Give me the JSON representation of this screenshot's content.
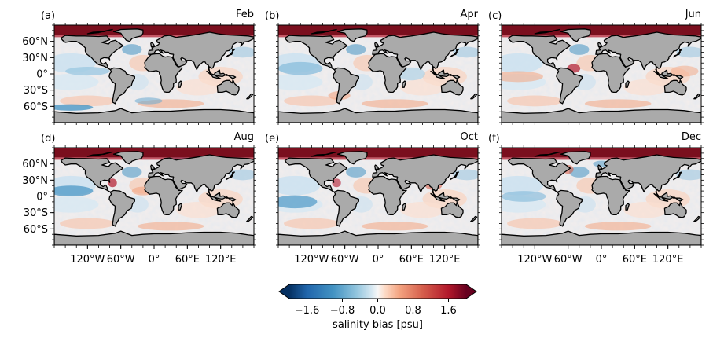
{
  "panels": [
    {
      "id": "a",
      "label": "(a)",
      "month": "Feb"
    },
    {
      "id": "b",
      "label": "(b)",
      "month": "Apr"
    },
    {
      "id": "c",
      "label": "(c)",
      "month": "Jun"
    },
    {
      "id": "d",
      "label": "(d)",
      "month": "Aug"
    },
    {
      "id": "e",
      "label": "(e)",
      "month": "Oct"
    },
    {
      "id": "f",
      "label": "(f)",
      "month": "Dec"
    }
  ],
  "lat_ticks": [
    "60°N",
    "30°N",
    "0°",
    "30°S",
    "60°S"
  ],
  "lon_ticks": [
    "120°W",
    "60°W",
    "0°",
    "60°E",
    "120°E"
  ],
  "colorbar": {
    "label": "salinity bias [psu]",
    "ticks": [
      "−1.6",
      "−0.8",
      "0.0",
      "0.8",
      "1.6"
    ],
    "range": [
      -2.0,
      2.0
    ],
    "extend": "both",
    "colormap": "RdBu_r"
  },
  "colors": {
    "land": "#aaaaaa",
    "coast": "#000000",
    "arctic": "#7a0f1e",
    "blue_deep": "#053061",
    "red_deep": "#67001f",
    "neutral": "#f7f7f7"
  }
}
